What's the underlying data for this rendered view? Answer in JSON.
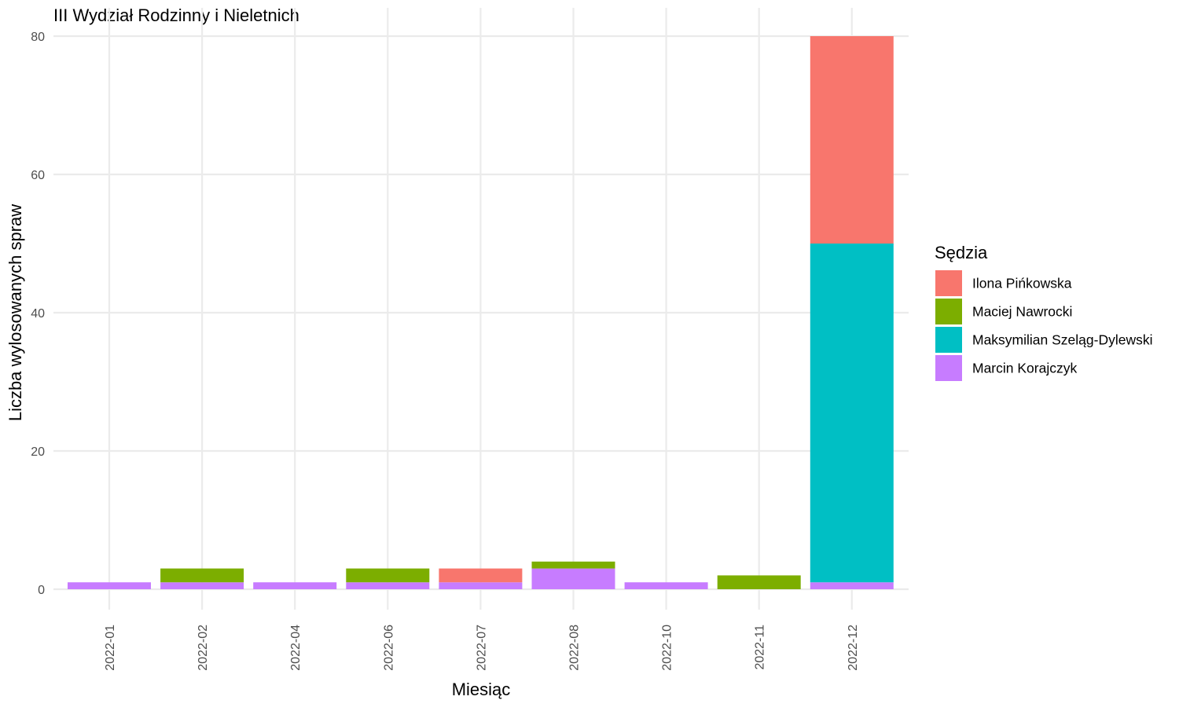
{
  "chart_data": {
    "type": "bar",
    "stacked": true,
    "title": "III Wydział Rodzinny i Nieletnich",
    "xlabel": "Miesiąc",
    "ylabel": "Liczba wylosowanych spraw",
    "categories": [
      "2022-01",
      "2022-02",
      "2022-04",
      "2022-06",
      "2022-07",
      "2022-08",
      "2022-10",
      "2022-11",
      "2022-12"
    ],
    "ylim": [
      0,
      80
    ],
    "yticks": [
      0,
      20,
      40,
      60,
      80
    ],
    "grid": true,
    "legend": {
      "title": "Sędzia",
      "position": "right"
    },
    "series": [
      {
        "name": "Ilona Pińkowska",
        "color": "#F8766D",
        "values": [
          0,
          0,
          0,
          0,
          2,
          0,
          0,
          0,
          30
        ]
      },
      {
        "name": "Maciej Nawrocki",
        "color": "#7CAE00",
        "values": [
          0,
          2,
          0,
          2,
          0,
          1,
          0,
          2,
          0
        ]
      },
      {
        "name": "Maksymilian Szeląg-Dylewski",
        "color": "#00BFC4",
        "values": [
          0,
          0,
          0,
          0,
          0,
          0,
          0,
          0,
          49
        ]
      },
      {
        "name": "Marcin Korajczyk",
        "color": "#C77CFF",
        "values": [
          1,
          1,
          1,
          1,
          1,
          3,
          1,
          0,
          1
        ]
      }
    ]
  }
}
